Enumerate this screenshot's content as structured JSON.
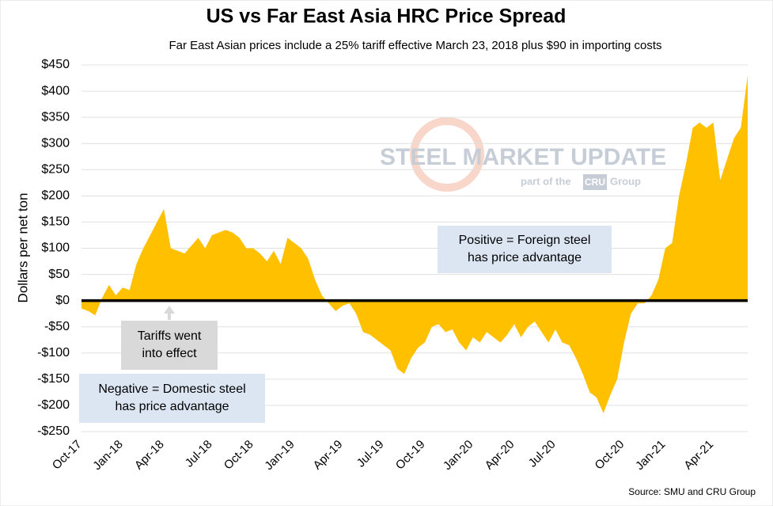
{
  "chart_data": {
    "type": "area",
    "title": "US vs Far East Asia HRC Price Spread",
    "subtitle": "Far East Asian prices include a 25% tariff effective March 23, 2018 plus $90 in importing costs",
    "y_label": "Dollars per net ton",
    "source": "Source: SMU and CRU Group",
    "watermark": {
      "brand": "STEEL MARKET UPDATE",
      "tagline": "part of the",
      "logo": "CRU",
      "group": "Group"
    },
    "annotations": [
      {
        "name": "tariffs",
        "lines": [
          "Tariffs went",
          "into effect"
        ]
      },
      {
        "name": "negative",
        "lines": [
          "Negative = Domestic steel",
          "has price advantage"
        ]
      },
      {
        "name": "positive",
        "lines": [
          "Positive = Foreign steel",
          "has price advantage"
        ]
      }
    ],
    "color": "#ffc000",
    "categories": [
      "Oct-17",
      null,
      null,
      null,
      null,
      null,
      "Jan-18",
      null,
      null,
      null,
      null,
      null,
      "Apr-18",
      null,
      null,
      null,
      null,
      null,
      null,
      "Jul-18",
      null,
      null,
      null,
      null,
      null,
      "Oct-18",
      null,
      null,
      null,
      null,
      null,
      "Jan-19",
      null,
      null,
      null,
      null,
      null,
      null,
      "Apr-19",
      null,
      null,
      null,
      null,
      null,
      "Jul-19",
      null,
      null,
      null,
      null,
      null,
      "Oct-19",
      null,
      null,
      null,
      null,
      null,
      null,
      "Jan-20",
      null,
      null,
      null,
      null,
      null,
      "Apr-20",
      null,
      null,
      null,
      null,
      null,
      "Jul-20",
      null,
      null,
      null,
      null,
      null,
      null,
      null,
      null,
      null,
      "Oct-20",
      null,
      null,
      null,
      null,
      null,
      "Jan-21",
      null,
      null,
      null,
      null,
      null,
      null,
      "Apr-21",
      null,
      null,
      null,
      null,
      null
    ],
    "values": [
      -15,
      -20,
      -28,
      5,
      30,
      10,
      25,
      20,
      70,
      100,
      125,
      150,
      175,
      100,
      95,
      90,
      105,
      120,
      100,
      125,
      130,
      135,
      130,
      120,
      100,
      100,
      90,
      75,
      95,
      70,
      120,
      110,
      100,
      80,
      40,
      10,
      -5,
      -20,
      -10,
      -5,
      -25,
      -60,
      -65,
      -75,
      -85,
      -95,
      -130,
      -140,
      -110,
      -90,
      -80,
      -50,
      -45,
      -60,
      -55,
      -80,
      -95,
      -70,
      -80,
      -60,
      -70,
      -80,
      -65,
      -45,
      -70,
      -50,
      -40,
      -60,
      -80,
      -55,
      -80,
      -85,
      -110,
      -140,
      -175,
      -185,
      -215,
      -180,
      -150,
      -80,
      -25,
      -5,
      -5,
      10,
      40,
      100,
      110,
      200,
      260,
      330,
      340,
      330,
      340,
      230,
      270,
      310,
      330,
      430
    ],
    "ylim": [
      -250,
      450
    ],
    "yticks": [
      {
        "value": 450,
        "label": "$450"
      },
      {
        "value": 400,
        "label": "$400"
      },
      {
        "value": 350,
        "label": "$350"
      },
      {
        "value": 300,
        "label": "$300"
      },
      {
        "value": 250,
        "label": "$250"
      },
      {
        "value": 200,
        "label": "$200"
      },
      {
        "value": 150,
        "label": "$150"
      },
      {
        "value": 100,
        "label": "$100"
      },
      {
        "value": 50,
        "label": "$50"
      },
      {
        "value": 0,
        "label": "$0"
      },
      {
        "value": -50,
        "label": "-$50"
      },
      {
        "value": -100,
        "label": "-$100"
      },
      {
        "value": -150,
        "label": "-$150"
      },
      {
        "value": -200,
        "label": "-$200"
      },
      {
        "value": -250,
        "label": "-$250"
      }
    ],
    "grid": true
  }
}
